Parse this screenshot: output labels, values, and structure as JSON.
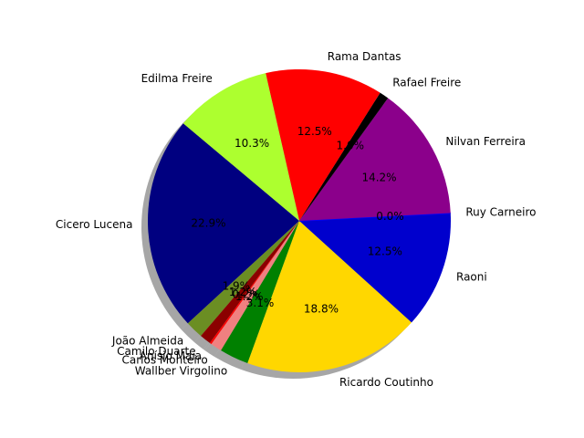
{
  "chart_data": {
    "type": "pie",
    "title": "",
    "shadow": true,
    "start_angle_deg": 140,
    "direction": "counterclockwise",
    "slices": [
      {
        "label": "Cicero Lucena",
        "value": 22.9,
        "pct_label": "22.9%",
        "color": "#000080"
      },
      {
        "label": "João Almeida",
        "value": 1.9,
        "pct_label": "1.9%",
        "color": "#6B8E23"
      },
      {
        "label": "Camilo Duarte",
        "value": 1.2,
        "pct_label": "1.2%",
        "color": "#8B0000"
      },
      {
        "label": "Anísio Maia",
        "value": 0.2,
        "pct_label": "0.2%",
        "color": "#FF0000"
      },
      {
        "label": "Carlos Monteiro",
        "value": 1.2,
        "pct_label": "1.2%",
        "color": "#F08080"
      },
      {
        "label": "Wallber Virgolino",
        "value": 3.1,
        "pct_label": "3.1%",
        "color": "#008000"
      },
      {
        "label": "Ricardo Coutinho",
        "value": 18.8,
        "pct_label": "18.8%",
        "color": "#FFD700"
      },
      {
        "label": "Raoni",
        "value": 12.5,
        "pct_label": "12.5%",
        "color": "#0000CD"
      },
      {
        "label": "Ruy Carneiro",
        "value": 0.0,
        "pct_label": "0.0%",
        "color": "#0000FF"
      },
      {
        "label": "Nilvan Ferreira",
        "value": 14.2,
        "pct_label": "14.2%",
        "color": "#8B008B"
      },
      {
        "label": "Rafael Freire",
        "value": 1.0,
        "pct_label": "1.0%",
        "color": "#000000"
      },
      {
        "label": "Rama Dantas",
        "value": 12.5,
        "pct_label": "12.5%",
        "color": "#FF0000"
      },
      {
        "label": "Edilma Freire",
        "value": 10.3,
        "pct_label": "10.3%",
        "color": "#ADFF2F"
      }
    ]
  }
}
